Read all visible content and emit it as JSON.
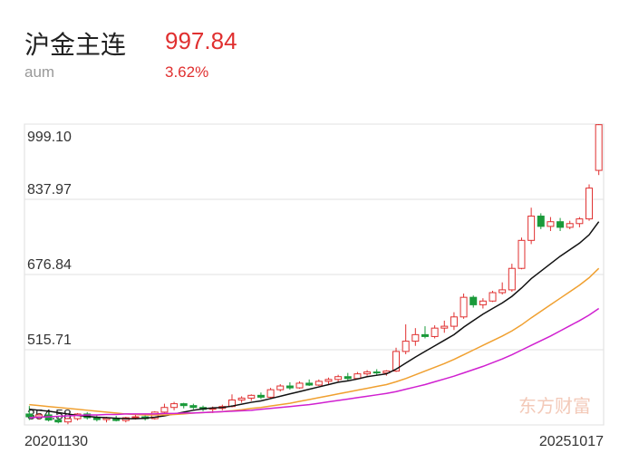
{
  "header": {
    "title": "沪金主连",
    "price": "997.84",
    "subtitle": "aum",
    "change": "3.62%"
  },
  "watermark": "东方财富",
  "chart_data": {
    "type": "candlestick",
    "categories": [
      "20201130",
      null,
      null,
      null,
      null,
      null,
      null,
      null,
      null,
      null,
      null,
      null,
      null,
      null,
      null,
      null,
      null,
      null,
      null,
      null,
      null,
      null,
      null,
      null,
      null,
      null,
      null,
      null,
      null,
      null,
      null,
      null,
      null,
      null,
      null,
      null,
      null,
      null,
      null,
      null,
      null,
      null,
      null,
      null,
      null,
      null,
      null,
      null,
      null,
      null,
      null,
      null,
      null,
      null,
      null,
      null,
      null,
      null,
      null,
      "20251017"
    ],
    "open": [
      378,
      372,
      376,
      365,
      361,
      368,
      378,
      370,
      366,
      369,
      364,
      370,
      372,
      368,
      382,
      392,
      400,
      396,
      392,
      388,
      390,
      394,
      408,
      412,
      418,
      414,
      430,
      438,
      434,
      444,
      440,
      448,
      452,
      458,
      454,
      464,
      468,
      466,
      470,
      512,
      534,
      548,
      544,
      562,
      566,
      586,
      628,
      612,
      620,
      638,
      644,
      690,
      750,
      802,
      780,
      790,
      778,
      786,
      796,
      900
    ],
    "high": [
      395,
      380,
      382,
      372,
      370,
      380,
      382,
      376,
      372,
      374,
      372,
      378,
      376,
      384,
      400,
      404,
      402,
      400,
      396,
      394,
      398,
      420,
      416,
      420,
      424,
      434,
      442,
      446,
      448,
      452,
      452,
      456,
      462,
      466,
      468,
      472,
      474,
      472,
      520,
      570,
      562,
      566,
      568,
      578,
      596,
      636,
      632,
      626,
      642,
      660,
      700,
      756,
      820,
      808,
      800,
      798,
      792,
      800,
      870,
      999.1
    ],
    "low": [
      365,
      366,
      362,
      358,
      356,
      364,
      366,
      362,
      360,
      362,
      360,
      366,
      364,
      366,
      378,
      386,
      390,
      388,
      384,
      380,
      386,
      392,
      402,
      406,
      410,
      412,
      426,
      430,
      432,
      438,
      438,
      442,
      446,
      450,
      452,
      460,
      462,
      460,
      468,
      506,
      524,
      540,
      540,
      552,
      558,
      582,
      606,
      604,
      618,
      634,
      640,
      688,
      742,
      774,
      770,
      770,
      774,
      778,
      792,
      890
    ],
    "close": [
      372,
      376,
      365,
      361,
      368,
      378,
      370,
      366,
      369,
      364,
      370,
      372,
      368,
      382,
      392,
      400,
      396,
      392,
      388,
      390,
      394,
      408,
      412,
      418,
      414,
      430,
      438,
      434,
      444,
      440,
      448,
      452,
      458,
      454,
      464,
      468,
      466,
      470,
      512,
      534,
      548,
      544,
      562,
      566,
      586,
      628,
      612,
      620,
      638,
      644,
      690,
      750,
      802,
      780,
      790,
      778,
      786,
      796,
      862,
      997.84
    ],
    "up_color": "#e03030",
    "down_color": "#1a9a3a",
    "series": [
      {
        "color": "#111111",
        "values": [
          388,
          386,
          384,
          381,
          378,
          375,
          373,
          371,
          370,
          369,
          368,
          368,
          369,
          371,
          374,
          378,
          382,
          386,
          389,
          391,
          392,
          395,
          399,
          403,
          406,
          411,
          416,
          421,
          426,
          431,
          436,
          441,
          446,
          449,
          453,
          458,
          461,
          464,
          474,
          487,
          500,
          512,
          524,
          536,
          548,
          564,
          578,
          592,
          604,
          616,
          630,
          648,
          668,
          684,
          700,
          716,
          730,
          744,
          762,
          790
        ]
      },
      {
        "color": "#f0a030",
        "values": [
          398,
          396,
          394,
          392,
          390,
          388,
          386,
          384,
          382,
          380,
          378,
          377,
          376,
          376,
          376,
          377,
          378,
          380,
          381,
          382,
          383,
          385,
          387,
          390,
          392,
          395,
          398,
          401,
          405,
          409,
          413,
          417,
          421,
          425,
          429,
          433,
          437,
          441,
          447,
          454,
          462,
          470,
          478,
          486,
          495,
          505,
          515,
          525,
          535,
          545,
          556,
          569,
          584,
          598,
          612,
          626,
          640,
          654,
          670,
          690
        ]
      },
      {
        "color": "#d020d0",
        "values": [
          370,
          371,
          372,
          373,
          374,
          375,
          376,
          376,
          377,
          377,
          378,
          378,
          378,
          378,
          379,
          379,
          380,
          380,
          381,
          382,
          383,
          384,
          385,
          386,
          388,
          390,
          392,
          394,
          396,
          398,
          401,
          404,
          407,
          410,
          413,
          416,
          419,
          422,
          426,
          431,
          436,
          441,
          447,
          453,
          459,
          466,
          473,
          480,
          488,
          496,
          505,
          515,
          525,
          535,
          545,
          556,
          567,
          578,
          590,
          604
        ]
      }
    ],
    "ylim": [
      354.58,
      999.1
    ],
    "yticks": [
      {
        "value": 354.58,
        "label": "354.58"
      },
      {
        "value": 515.71,
        "label": "515.71"
      },
      {
        "value": 676.84,
        "label": "676.84"
      },
      {
        "value": 837.97,
        "label": "837.97"
      },
      {
        "value": 999.1,
        "label": "999.10"
      }
    ],
    "grid": true
  }
}
